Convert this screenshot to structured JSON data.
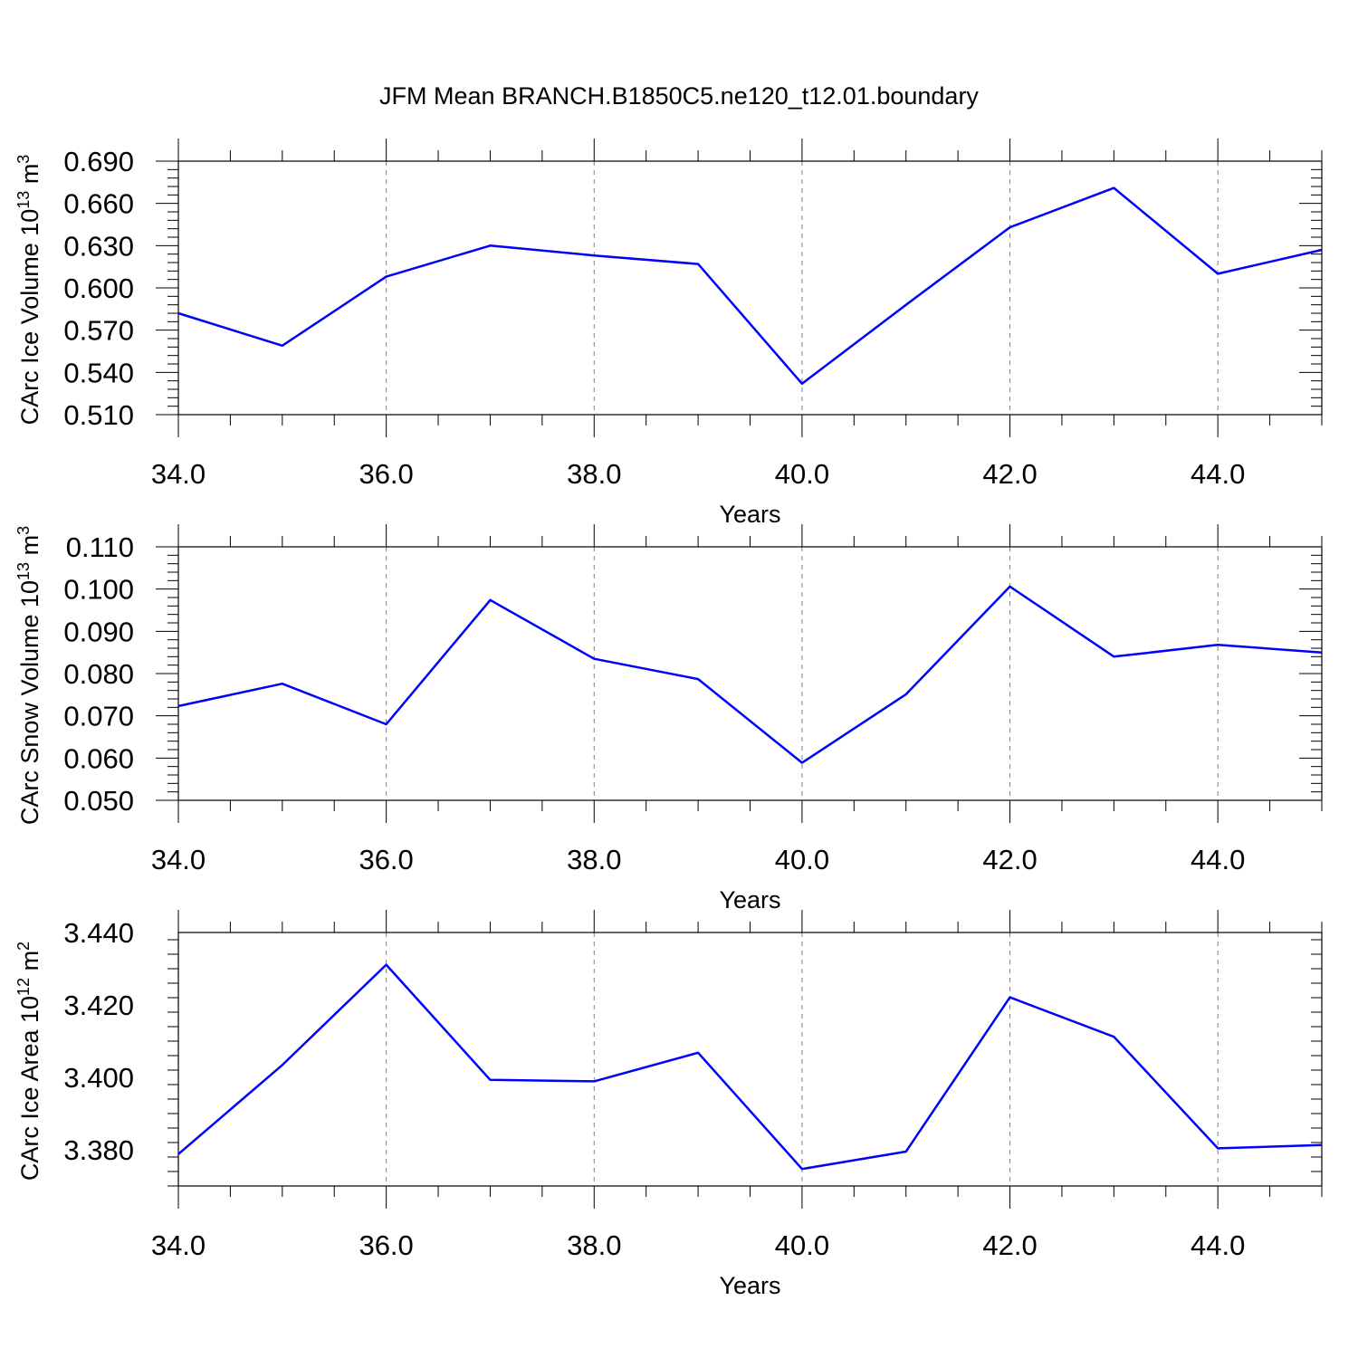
{
  "title": "JFM Mean BRANCH.B1850C5.ne120_t12.01.boundary",
  "colors": {
    "line": "#0000ff",
    "grid": "#808080",
    "frame": "#000000"
  },
  "chart_data": [
    {
      "type": "line",
      "ylabel": {
        "base": "CArc Ice Volume 10",
        "exp1": "13",
        "unit": " m",
        "exp2": "3"
      },
      "xlabel": "Years",
      "x": [
        34,
        35,
        36,
        37,
        38,
        39,
        40,
        41,
        42,
        43,
        44,
        45
      ],
      "series": [
        {
          "values": [
            0.582,
            0.559,
            0.608,
            0.63,
            0.623,
            0.617,
            0.532,
            0.588,
            0.643,
            0.671,
            0.61,
            0.627
          ]
        }
      ],
      "xlim": [
        34,
        45
      ],
      "ylim": [
        0.51,
        0.69
      ],
      "xticks": [
        34,
        36,
        38,
        40,
        42,
        44
      ],
      "xtick_labels": [
        "34.0",
        "36.0",
        "38.0",
        "40.0",
        "42.0",
        "44.0"
      ],
      "yticks": [
        0.51,
        0.54,
        0.57,
        0.6,
        0.63,
        0.66,
        0.69
      ],
      "ytick_labels": [
        "0.510",
        "0.540",
        "0.570",
        "0.600",
        "0.630",
        "0.660",
        "0.690"
      ],
      "y_minor_step": 0.006,
      "x_minor_step": 0.5,
      "grid": "x-major dashed"
    },
    {
      "type": "line",
      "ylabel": {
        "base": "CArc Snow Volume 10",
        "exp1": "13",
        "unit": " m",
        "exp2": "3"
      },
      "xlabel": "Years",
      "x": [
        34,
        35,
        36,
        37,
        38,
        39,
        40,
        41,
        42,
        43,
        44,
        45
      ],
      "series": [
        {
          "values": [
            0.0723,
            0.0776,
            0.068,
            0.0974,
            0.0835,
            0.0787,
            0.0589,
            0.0751,
            0.1006,
            0.084,
            0.0868,
            0.085
          ]
        }
      ],
      "xlim": [
        34,
        45
      ],
      "ylim": [
        0.05,
        0.11
      ],
      "xticks": [
        34,
        36,
        38,
        40,
        42,
        44
      ],
      "xtick_labels": [
        "34.0",
        "36.0",
        "38.0",
        "40.0",
        "42.0",
        "44.0"
      ],
      "yticks": [
        0.05,
        0.06,
        0.07,
        0.08,
        0.09,
        0.1,
        0.11
      ],
      "ytick_labels": [
        "0.050",
        "0.060",
        "0.070",
        "0.080",
        "0.090",
        "0.100",
        "0.110"
      ],
      "y_minor_step": 0.002,
      "x_minor_step": 0.5,
      "grid": "x-major dashed"
    },
    {
      "type": "line",
      "ylabel": {
        "base": "CArc Ice Area 10",
        "exp1": "12",
        "unit": " m",
        "exp2": "2"
      },
      "xlabel": "Years",
      "x": [
        34,
        35,
        36,
        37,
        38,
        39,
        40,
        41,
        42,
        43,
        44,
        45
      ],
      "series": [
        {
          "values": [
            3.3788,
            3.4034,
            3.4311,
            3.3993,
            3.3989,
            3.4068,
            3.3747,
            3.3795,
            3.4221,
            3.4112,
            3.3804,
            3.3813
          ]
        }
      ],
      "xlim": [
        34,
        45
      ],
      "ylim": [
        3.37,
        3.44
      ],
      "xticks": [
        34,
        36,
        38,
        40,
        42,
        44
      ],
      "xtick_labels": [
        "34.0",
        "36.0",
        "38.0",
        "40.0",
        "42.0",
        "44.0"
      ],
      "yticks": [
        3.38,
        3.4,
        3.42,
        3.44
      ],
      "ytick_labels": [
        "3.380",
        "3.400",
        "3.420",
        "3.440"
      ],
      "y_minor_step": 0.004,
      "x_minor_step": 0.5,
      "grid": "x-major dashed"
    }
  ]
}
